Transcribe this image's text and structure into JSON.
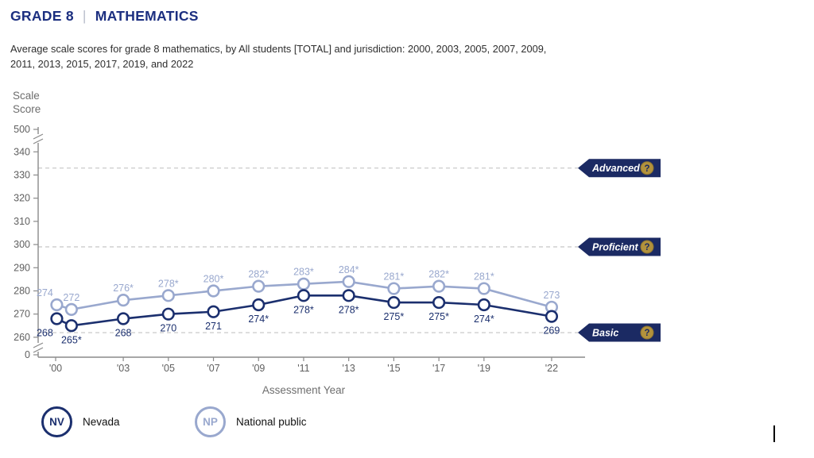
{
  "header": {
    "grade": "GRADE 8",
    "separator": "|",
    "subject": "MATHEMATICS"
  },
  "description": "Average scale scores for grade 8 mathematics, by All students [TOTAL] and jurisdiction: 2000, 2003, 2005, 2007, 2009,\n2011, 2013, 2015, 2017, 2019, and 2022",
  "misc": {
    "text_cursor": "|"
  },
  "chart_data": {
    "type": "line",
    "title": "",
    "xlabel": "Assessment Year",
    "ylabel": "Scale Score",
    "y_axis_top_label": "500",
    "y_axis_bottom_label": "0",
    "ylim": [
      260,
      340
    ],
    "y_ticks": [
      260,
      270,
      280,
      290,
      300,
      310,
      320,
      330,
      340
    ],
    "tick_years": [
      2000,
      2003,
      2005,
      2007,
      2009,
      2011,
      2013,
      2015,
      2017,
      2019,
      2022
    ],
    "x_tick_labels": [
      "'00",
      "'03",
      "'05",
      "'07",
      "'09",
      "'11",
      "'13",
      "'15",
      "'17",
      "'19",
      "'22"
    ],
    "x_years": [
      2000.05,
      2000.7,
      2003,
      2005,
      2007,
      2009,
      2011,
      2013,
      2015,
      2017,
      2019,
      2022
    ],
    "grid": "dashed horizontal lines at achievement levels",
    "legend_position": "bottom-left",
    "series": [
      {
        "name": "Nevada",
        "abbr": "NV",
        "color": "#1b2f6e",
        "label_position": "below",
        "values": [
          268,
          265,
          268,
          270,
          271,
          274,
          278,
          278,
          275,
          275,
          274,
          269
        ],
        "point_labels": [
          "268",
          "265*",
          "268",
          "270",
          "271",
          "274*",
          "278*",
          "278*",
          "275*",
          "275*",
          "274*",
          "269"
        ]
      },
      {
        "name": "National public",
        "abbr": "NP",
        "color": "#99a8ce",
        "label_position": "above",
        "values": [
          274,
          272,
          276,
          278,
          280,
          282,
          283,
          284,
          281,
          282,
          281,
          273
        ],
        "point_labels": [
          "274",
          "272",
          "276*",
          "278*",
          "280*",
          "282*",
          "283*",
          "284*",
          "281*",
          "282*",
          "281*",
          "273"
        ]
      }
    ],
    "achievement_levels": [
      {
        "label": "Advanced",
        "value": 333,
        "help": "?"
      },
      {
        "label": "Proficient",
        "value": 299,
        "help": "?"
      },
      {
        "label": "Basic",
        "value": 262,
        "help": "?"
      }
    ],
    "colors": {
      "arrow_bg": "#1b2a63",
      "arrow_text": "#ffffff",
      "help_bg": "#b2923c",
      "help_border": "#8d7431",
      "help_text": "#1b2a63",
      "axis": "#8a8a8a",
      "gridline": "#cfcfcf",
      "tick_text": "#5f5f5f"
    }
  }
}
